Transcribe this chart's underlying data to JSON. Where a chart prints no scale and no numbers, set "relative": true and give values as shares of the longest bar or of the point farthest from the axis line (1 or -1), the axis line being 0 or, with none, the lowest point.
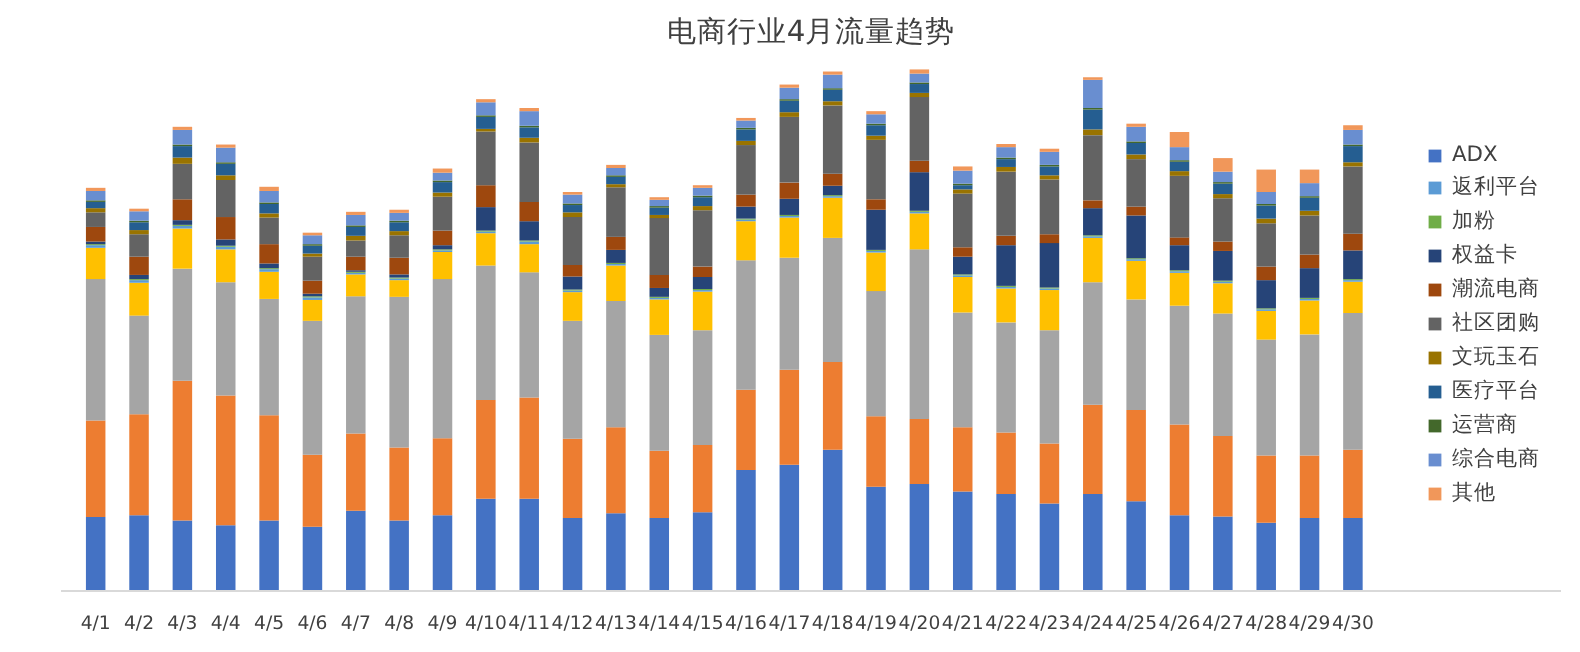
{
  "chart_data": {
    "type": "bar",
    "title": "电商行业4月流量趋势",
    "stacked": true,
    "relative": true,
    "legend": "right",
    "categories": [
      "4/1",
      "4/2",
      "4/3",
      "4/4",
      "4/5",
      "4/6",
      "4/7",
      "4/8",
      "4/9",
      "4/10",
      "4/11",
      "4/12",
      "4/13",
      "4/14",
      "4/15",
      "4/16",
      "4/17",
      "4/18",
      "4/19",
      "4/20",
      "4/21",
      "4/22",
      "4/23",
      "4/24",
      "4/25",
      "4/26",
      "4/27",
      "4/28",
      "4/29",
      "4/30"
    ],
    "series": [
      {
        "name": "ADX",
        "color": "#4472c4",
        "values": [
          0.142,
          0.145,
          0.135,
          0.126,
          0.135,
          0.123,
          0.154,
          0.135,
          0.145,
          0.177,
          0.177,
          0.14,
          0.149,
          0.14,
          0.151,
          0.232,
          0.242,
          0.271,
          0.2,
          0.205,
          0.191,
          0.186,
          0.168,
          0.186,
          0.172,
          0.145,
          0.143,
          0.131,
          0.14,
          0.14
        ]
      },
      {
        "color": "#ed7d31",
        "values": [
          0.185,
          0.194,
          0.268,
          0.249,
          0.202,
          0.138,
          0.148,
          0.14,
          0.148,
          0.189,
          0.194,
          0.152,
          0.165,
          0.129,
          0.129,
          0.154,
          0.182,
          0.168,
          0.135,
          0.125,
          0.123,
          0.118,
          0.115,
          0.171,
          0.175,
          0.174,
          0.154,
          0.129,
          0.12,
          0.131
        ]
      },
      {
        "color": "#a5a5a5",
        "values": [
          0.271,
          0.189,
          0.215,
          0.217,
          0.223,
          0.257,
          0.263,
          0.289,
          0.305,
          0.258,
          0.24,
          0.226,
          0.242,
          0.222,
          0.22,
          0.248,
          0.215,
          0.238,
          0.24,
          0.325,
          0.22,
          0.211,
          0.217,
          0.235,
          0.212,
          0.228,
          0.235,
          0.222,
          0.232,
          0.262
        ]
      },
      {
        "color": "#ffc000",
        "values": [
          0.06,
          0.063,
          0.077,
          0.063,
          0.052,
          0.04,
          0.042,
          0.032,
          0.052,
          0.062,
          0.054,
          0.055,
          0.068,
          0.068,
          0.074,
          0.075,
          0.077,
          0.077,
          0.074,
          0.069,
          0.068,
          0.065,
          0.077,
          0.085,
          0.074,
          0.063,
          0.058,
          0.055,
          0.065,
          0.06
        ]
      },
      {
        "name": "返利平台",
        "color": "#5b9bd5",
        "values": [
          0.005,
          0.005,
          0.005,
          0.005,
          0.005,
          0.005,
          0.003,
          0.003,
          0.003,
          0.003,
          0.005,
          0.003,
          0.003,
          0.003,
          0.003,
          0.003,
          0.003,
          0.003,
          0.003,
          0.003,
          0.003,
          0.003,
          0.003,
          0.003,
          0.003,
          0.003,
          0.003,
          0.003,
          0.003,
          0.003
        ]
      },
      {
        "name": "加粉",
        "color": "#70ad47",
        "values": [
          0.002,
          0.002,
          0.002,
          0.002,
          0.002,
          0.002,
          0.002,
          0.002,
          0.002,
          0.002,
          0.002,
          0.002,
          0.002,
          0.002,
          0.002,
          0.002,
          0.002,
          0.002,
          0.002,
          0.002,
          0.002,
          0.002,
          0.002,
          0.002,
          0.002,
          0.002,
          0.002,
          0.002,
          0.002,
          0.002
        ]
      },
      {
        "name": "权益卡",
        "color": "#264478",
        "values": [
          0.005,
          0.008,
          0.009,
          0.012,
          0.009,
          0.005,
          0.003,
          0.006,
          0.008,
          0.045,
          0.037,
          0.025,
          0.025,
          0.017,
          0.023,
          0.023,
          0.031,
          0.018,
          0.077,
          0.074,
          0.034,
          0.078,
          0.085,
          0.052,
          0.082,
          0.048,
          0.057,
          0.054,
          0.057,
          0.055
        ]
      },
      {
        "name": "潮流电商",
        "color": "#9e480e",
        "values": [
          0.028,
          0.035,
          0.04,
          0.043,
          0.037,
          0.025,
          0.026,
          0.032,
          0.028,
          0.042,
          0.037,
          0.022,
          0.025,
          0.025,
          0.02,
          0.023,
          0.031,
          0.023,
          0.02,
          0.022,
          0.018,
          0.018,
          0.017,
          0.015,
          0.017,
          0.015,
          0.018,
          0.026,
          0.026,
          0.032
        ]
      },
      {
        "name": "社区团购",
        "color": "#636363",
        "values": [
          0.028,
          0.043,
          0.068,
          0.071,
          0.051,
          0.046,
          0.031,
          0.043,
          0.065,
          0.103,
          0.114,
          0.092,
          0.095,
          0.109,
          0.108,
          0.095,
          0.126,
          0.131,
          0.114,
          0.122,
          0.103,
          0.123,
          0.105,
          0.125,
          0.091,
          0.118,
          0.083,
          0.083,
          0.075,
          0.129
        ]
      },
      {
        "name": "文玩玉石",
        "color": "#997300",
        "values": [
          0.008,
          0.008,
          0.012,
          0.009,
          0.008,
          0.006,
          0.009,
          0.008,
          0.008,
          0.005,
          0.009,
          0.009,
          0.006,
          0.006,
          0.008,
          0.008,
          0.009,
          0.008,
          0.008,
          0.008,
          0.008,
          0.009,
          0.008,
          0.011,
          0.009,
          0.009,
          0.008,
          0.009,
          0.009,
          0.008
        ]
      },
      {
        "name": "医疗平台",
        "color": "#255e91",
        "values": [
          0.012,
          0.015,
          0.022,
          0.022,
          0.018,
          0.015,
          0.017,
          0.017,
          0.02,
          0.023,
          0.02,
          0.014,
          0.014,
          0.014,
          0.017,
          0.022,
          0.022,
          0.022,
          0.02,
          0.017,
          0.008,
          0.015,
          0.017,
          0.038,
          0.022,
          0.018,
          0.02,
          0.025,
          0.025,
          0.031
        ]
      },
      {
        "name": "运营商",
        "color": "#43682b",
        "values": [
          0.003,
          0.003,
          0.003,
          0.003,
          0.003,
          0.003,
          0.003,
          0.003,
          0.003,
          0.003,
          0.003,
          0.003,
          0.003,
          0.003,
          0.003,
          0.003,
          0.003,
          0.003,
          0.003,
          0.003,
          0.003,
          0.003,
          0.003,
          0.003,
          0.003,
          0.003,
          0.003,
          0.003,
          0.003,
          0.003
        ]
      },
      {
        "name": "综合电商",
        "color": "#698ed0",
        "values": [
          0.018,
          0.018,
          0.028,
          0.028,
          0.022,
          0.017,
          0.02,
          0.015,
          0.015,
          0.025,
          0.028,
          0.017,
          0.014,
          0.012,
          0.015,
          0.014,
          0.022,
          0.026,
          0.018,
          0.017,
          0.025,
          0.02,
          0.025,
          0.054,
          0.028,
          0.025,
          0.02,
          0.023,
          0.025,
          0.028
        ]
      },
      {
        "name": "其他",
        "color": "#f1975a",
        "values": [
          0.006,
          0.005,
          0.006,
          0.006,
          0.008,
          0.005,
          0.006,
          0.006,
          0.008,
          0.006,
          0.006,
          0.005,
          0.006,
          0.005,
          0.005,
          0.005,
          0.006,
          0.006,
          0.006,
          0.008,
          0.008,
          0.006,
          0.006,
          0.005,
          0.006,
          0.029,
          0.026,
          0.043,
          0.026,
          0.009
        ]
      }
    ]
  }
}
